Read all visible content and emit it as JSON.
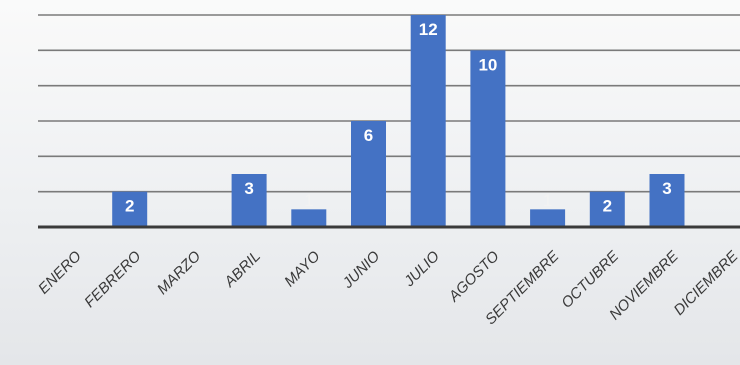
{
  "chart_data": {
    "type": "bar",
    "title": "",
    "xlabel": "",
    "ylabel": "",
    "categories": [
      "ENERO",
      "FEBRERO",
      "MARZO",
      "ABRIL",
      "MAYO",
      "JUNIO",
      "JULIO",
      "AGOSTO",
      "SEPTIEMBRE",
      "OCTUBRE",
      "NOVIEMBRE",
      "DICIEMBRE"
    ],
    "values": [
      0,
      2,
      0,
      3,
      1,
      6,
      12,
      10,
      1,
      2,
      3,
      0
    ],
    "ylim": [
      0,
      12
    ],
    "grid": true,
    "bar_color": "#4472c4",
    "data_labels": true
  }
}
